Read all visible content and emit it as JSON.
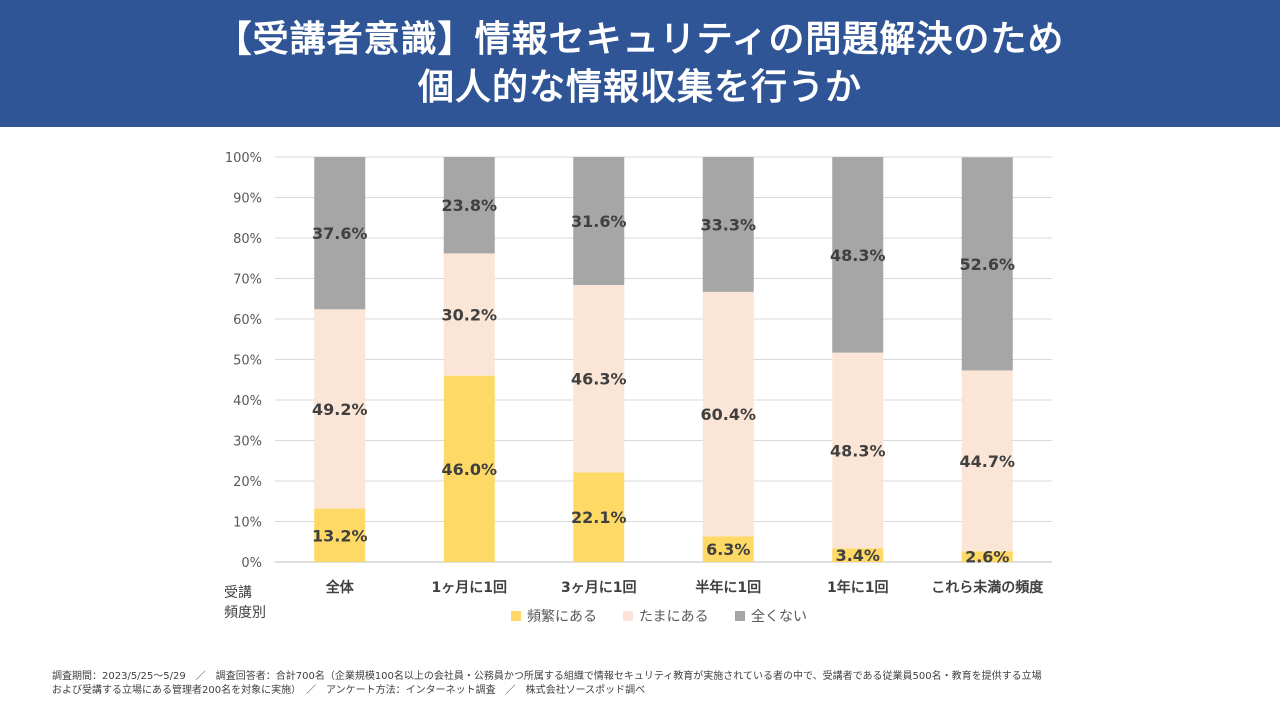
{
  "title": {
    "line1": "【受講者意識】情報セキュリティの問題解決のため",
    "line2": "個人的な情報収集を行うか"
  },
  "chart_data": {
    "type": "bar",
    "stacked": true,
    "categories": [
      "全体",
      "1ヶ月に1回",
      "3ヶ月に1回",
      "半年に1回",
      "1年に1回",
      "これら未満の頻度"
    ],
    "series": [
      {
        "name": "頻繁にある",
        "color": "#ffd966",
        "values": [
          13.2,
          46.0,
          22.1,
          6.3,
          3.4,
          2.6
        ],
        "labels": [
          "13.2%",
          "46.0%",
          "22.1%",
          "6.3%",
          "3.4%",
          "2.6%"
        ]
      },
      {
        "name": "たまにある",
        "color": "#fbe5d6",
        "values": [
          49.2,
          30.2,
          46.3,
          60.4,
          48.3,
          44.7
        ],
        "labels": [
          "49.2%",
          "30.2%",
          "46.3%",
          "60.4%",
          "48.3%",
          "44.7%"
        ]
      },
      {
        "name": "全くない",
        "color": "#a6a6a6",
        "values": [
          37.6,
          23.8,
          31.6,
          33.3,
          48.3,
          52.6
        ],
        "labels": [
          "37.6%",
          "23.8%",
          "31.6%",
          "33.3%",
          "48.3%",
          "52.6%"
        ]
      }
    ],
    "y_ticks": [
      "0%",
      "10%",
      "20%",
      "30%",
      "40%",
      "50%",
      "60%",
      "70%",
      "80%",
      "90%",
      "100%"
    ],
    "ylim": [
      0,
      100
    ],
    "xlabel_line1": "受講",
    "xlabel_line2": "頻度別",
    "legend_position": "bottom",
    "grid": true
  },
  "footnote": {
    "line1": "調査期間：2023/5/25〜5/29　／　調査回答者：合計700名（企業規模100名以上の会社員・公務員かつ所属する組織で情報セキュリティ教育が実施されている者の中で、受講者である従業員500名・教育を提供する立場",
    "line2": "および受講する立場にある管理者200名を対象に実施）　／　アンケート方法：インターネット調査　／　株式会社ソースポッド調べ"
  }
}
